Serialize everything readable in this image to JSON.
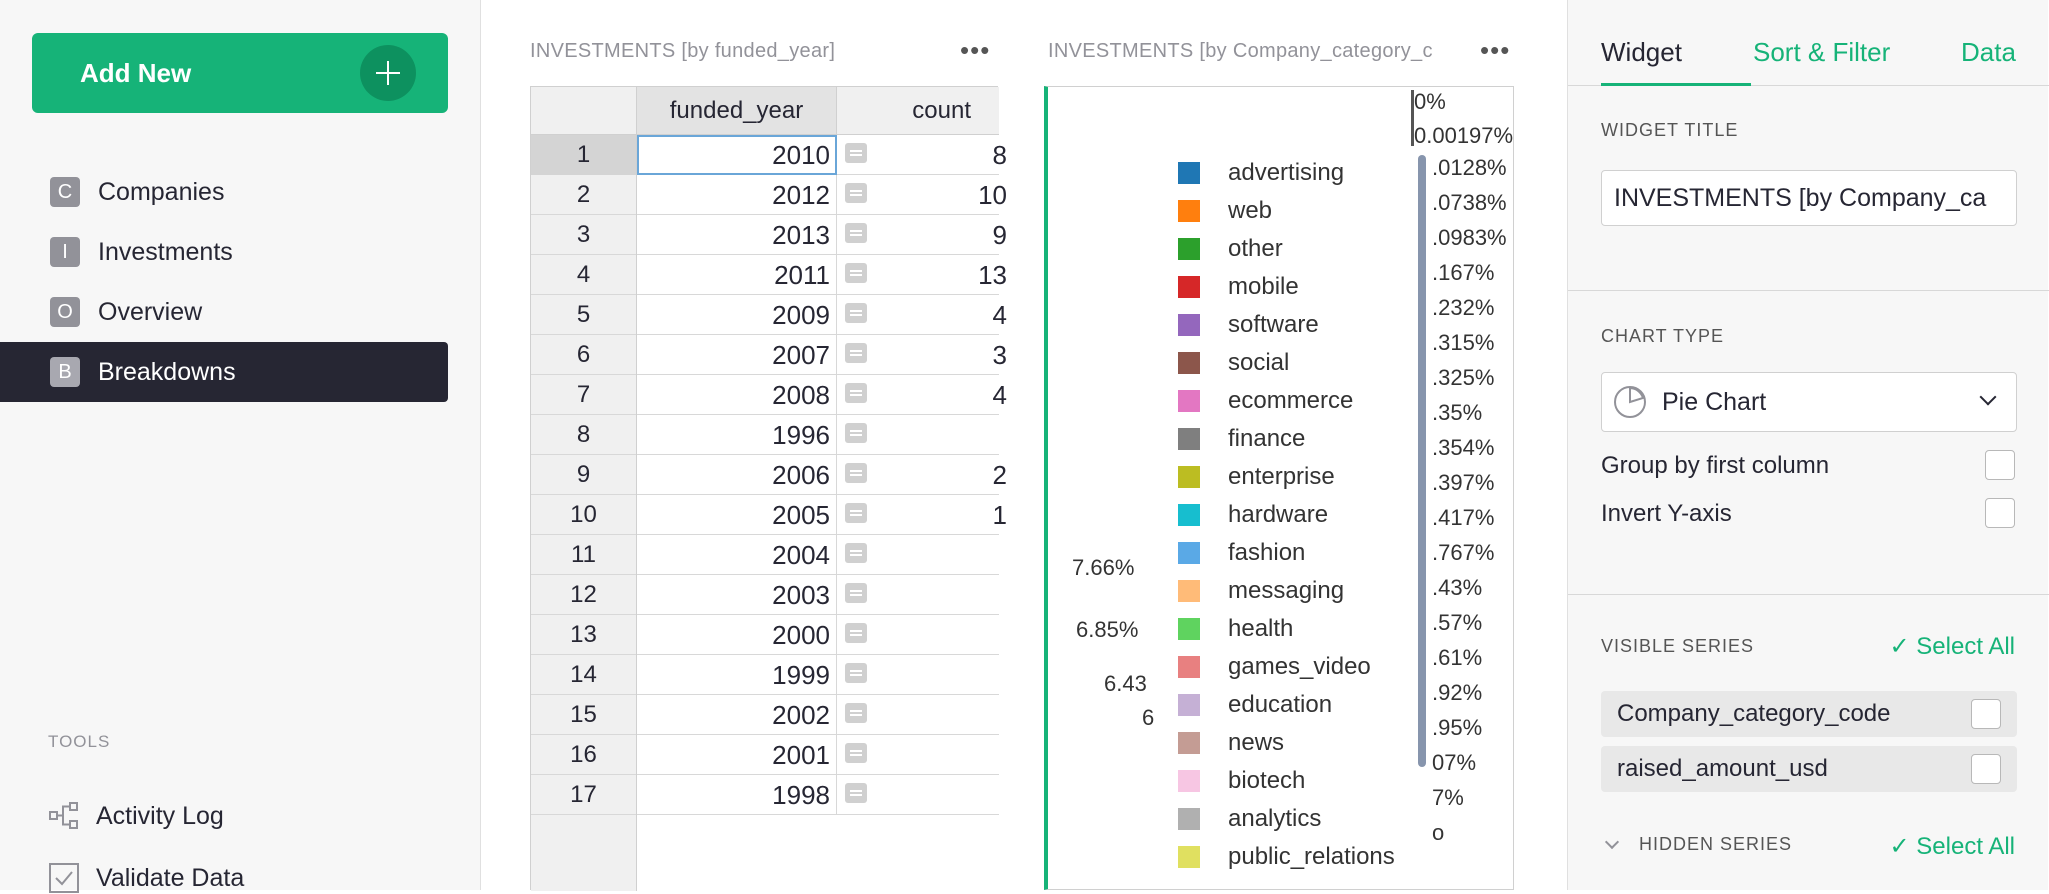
{
  "sidebar": {
    "add_new": "Add New",
    "pages": [
      {
        "initial": "C",
        "label": "Companies"
      },
      {
        "initial": "I",
        "label": "Investments"
      },
      {
        "initial": "O",
        "label": "Overview"
      },
      {
        "initial": "B",
        "label": "Breakdowns",
        "active": true
      }
    ],
    "tools_label": "TOOLS",
    "tools": [
      "Activity Log",
      "Validate Data"
    ]
  },
  "table_section": {
    "title": "INVESTMENTS [by funded_year]",
    "columns": [
      "funded_year",
      "count"
    ],
    "rows": [
      {
        "n": "1",
        "year": "2010",
        "count": "8"
      },
      {
        "n": "2",
        "year": "2012",
        "count": "10"
      },
      {
        "n": "3",
        "year": "2013",
        "count": "9"
      },
      {
        "n": "4",
        "year": "2011",
        "count": "13"
      },
      {
        "n": "5",
        "year": "2009",
        "count": "4"
      },
      {
        "n": "6",
        "year": "2007",
        "count": "3"
      },
      {
        "n": "7",
        "year": "2008",
        "count": "4"
      },
      {
        "n": "8",
        "year": "1996",
        "count": ""
      },
      {
        "n": "9",
        "year": "2006",
        "count": "2"
      },
      {
        "n": "10",
        "year": "2005",
        "count": "1"
      },
      {
        "n": "11",
        "year": "2004",
        "count": ""
      },
      {
        "n": "12",
        "year": "2003",
        "count": ""
      },
      {
        "n": "13",
        "year": "2000",
        "count": ""
      },
      {
        "n": "14",
        "year": "1999",
        "count": ""
      },
      {
        "n": "15",
        "year": "2002",
        "count": ""
      },
      {
        "n": "16",
        "year": "2001",
        "count": ""
      },
      {
        "n": "17",
        "year": "1998",
        "count": ""
      }
    ]
  },
  "chart_section": {
    "title": "INVESTMENTS [by Company_category_c",
    "left_labels": [
      "7.66%",
      "6.85%",
      "6.43",
      "6"
    ],
    "right_labels": [
      "0%",
      "0.00197%",
      ".0128%",
      ".0738%",
      ".0983%",
      ".167%",
      ".232%",
      ".315%",
      ".325%",
      ".35%",
      ".354%",
      ".397%",
      ".417%",
      ".767%",
      ".43%",
      ".57%",
      ".61%",
      ".92%",
      ".95%",
      "07%",
      "7%",
      "o"
    ],
    "legend": [
      {
        "label": "advertising",
        "color": "#1f77b4"
      },
      {
        "label": "web",
        "color": "#ff7f0e"
      },
      {
        "label": "other",
        "color": "#2ca02c"
      },
      {
        "label": "mobile",
        "color": "#d62728"
      },
      {
        "label": "software",
        "color": "#9467bd"
      },
      {
        "label": "social",
        "color": "#8c564b"
      },
      {
        "label": "ecommerce",
        "color": "#e377c2"
      },
      {
        "label": "finance",
        "color": "#7f7f7f"
      },
      {
        "label": "enterprise",
        "color": "#bcbd22"
      },
      {
        "label": "hardware",
        "color": "#17becf"
      },
      {
        "label": "fashion",
        "color": "#5aa9e6"
      },
      {
        "label": "messaging",
        "color": "#ffbb78"
      },
      {
        "label": "health",
        "color": "#5fd35f"
      },
      {
        "label": "games_video",
        "color": "#e88080"
      },
      {
        "label": "education",
        "color": "#c5b0d5"
      },
      {
        "label": "news",
        "color": "#c49c94"
      },
      {
        "label": "biotech",
        "color": "#f7c6e3"
      },
      {
        "label": "analytics",
        "color": "#b0b0b0"
      },
      {
        "label": "public_relations",
        "color": "#e0e060"
      }
    ]
  },
  "right_panel": {
    "tabs": [
      "Widget",
      "Sort & Filter",
      "Data"
    ],
    "widget_title_label": "WIDGET TITLE",
    "widget_title_value": "INVESTMENTS [by Company_ca",
    "chart_type_label": "CHART TYPE",
    "chart_type_value": "Pie Chart",
    "options": [
      "Group by first column",
      "Invert Y-axis"
    ],
    "visible_series_label": "VISIBLE SERIES",
    "select_all": "Select All",
    "series": [
      "Company_category_code",
      "raised_amount_usd"
    ],
    "hidden_series_label": "HIDDEN SERIES"
  },
  "colors": {
    "accent": "#16b378",
    "active_nav": "#262633"
  }
}
